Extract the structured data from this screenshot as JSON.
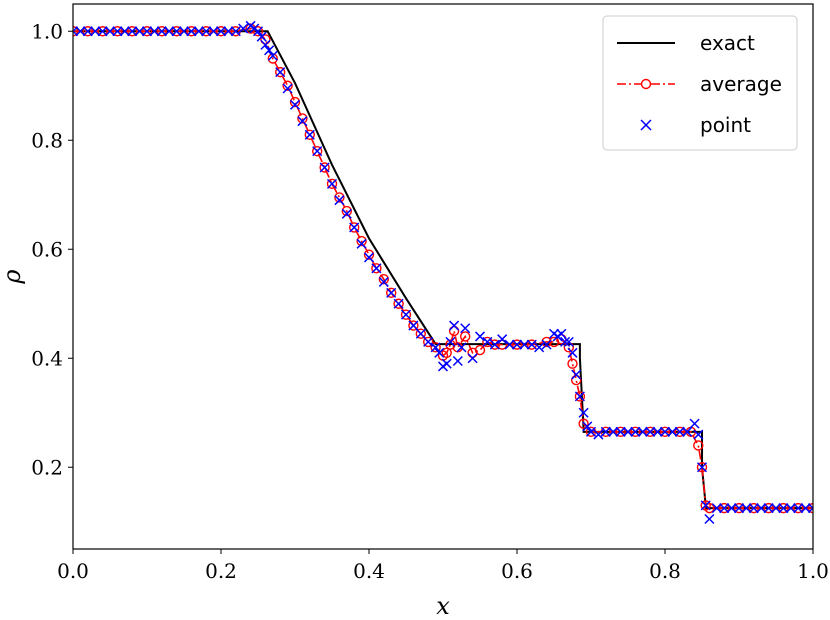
{
  "chart_data": {
    "type": "line",
    "xlabel": "x",
    "ylabel": "ρ",
    "xlim": [
      0.0,
      1.0
    ],
    "ylim": [
      0.05,
      1.05
    ],
    "x_ticks": [
      "0.0",
      "0.2",
      "0.4",
      "0.6",
      "0.8",
      "1.0"
    ],
    "y_ticks": [
      "0.2",
      "0.4",
      "0.6",
      "0.8",
      "1.0"
    ],
    "x_tick_values": [
      0.0,
      0.2,
      0.4,
      0.6,
      0.8,
      1.0
    ],
    "y_tick_values": [
      0.2,
      0.4,
      0.6,
      0.8,
      1.0
    ],
    "grid": false,
    "legend_position": "top-right",
    "series": [
      {
        "name": "exact",
        "style": "solid-line",
        "color": "#000000",
        "x": [
          0.0,
          0.263,
          0.3,
          0.35,
          0.4,
          0.45,
          0.49,
          0.685,
          0.685,
          0.69,
          0.69,
          0.85,
          0.85,
          0.855,
          0.855,
          1.0
        ],
        "y": [
          1.0,
          1.0,
          0.905,
          0.755,
          0.62,
          0.51,
          0.426,
          0.426,
          0.4,
          0.27,
          0.265,
          0.265,
          0.2,
          0.13,
          0.125,
          0.125
        ]
      },
      {
        "name": "average",
        "style": "dashdot-circle",
        "color": "#ff0000",
        "x": [
          0.0,
          0.02,
          0.04,
          0.06,
          0.08,
          0.1,
          0.12,
          0.14,
          0.16,
          0.18,
          0.2,
          0.22,
          0.24,
          0.25,
          0.26,
          0.27,
          0.28,
          0.29,
          0.3,
          0.31,
          0.32,
          0.33,
          0.34,
          0.35,
          0.36,
          0.37,
          0.38,
          0.39,
          0.4,
          0.41,
          0.42,
          0.43,
          0.44,
          0.45,
          0.46,
          0.47,
          0.48,
          0.49,
          0.5,
          0.505,
          0.51,
          0.515,
          0.52,
          0.53,
          0.54,
          0.55,
          0.56,
          0.57,
          0.58,
          0.6,
          0.62,
          0.64,
          0.65,
          0.66,
          0.67,
          0.675,
          0.68,
          0.685,
          0.69,
          0.7,
          0.72,
          0.74,
          0.76,
          0.78,
          0.8,
          0.82,
          0.835,
          0.845,
          0.85,
          0.855,
          0.86,
          0.88,
          0.9,
          0.92,
          0.94,
          0.96,
          0.98,
          1.0
        ],
        "y": [
          1.0,
          1.0,
          1.0,
          1.0,
          1.0,
          1.0,
          1.0,
          1.0,
          1.0,
          1.0,
          1.0,
          1.0,
          1.005,
          1.0,
          0.985,
          0.95,
          0.925,
          0.9,
          0.87,
          0.84,
          0.81,
          0.78,
          0.75,
          0.72,
          0.695,
          0.67,
          0.64,
          0.615,
          0.59,
          0.565,
          0.545,
          0.52,
          0.5,
          0.48,
          0.46,
          0.445,
          0.43,
          0.42,
          0.405,
          0.41,
          0.425,
          0.45,
          0.42,
          0.44,
          0.41,
          0.415,
          0.43,
          0.425,
          0.425,
          0.425,
          0.425,
          0.43,
          0.43,
          0.435,
          0.42,
          0.39,
          0.36,
          0.33,
          0.28,
          0.265,
          0.265,
          0.265,
          0.265,
          0.265,
          0.265,
          0.265,
          0.265,
          0.24,
          0.2,
          0.13,
          0.125,
          0.125,
          0.125,
          0.125,
          0.125,
          0.125,
          0.125,
          0.125
        ]
      },
      {
        "name": "point",
        "style": "x-marker",
        "color": "#0000ff",
        "x": [
          0.0,
          0.01,
          0.02,
          0.03,
          0.04,
          0.05,
          0.06,
          0.07,
          0.08,
          0.09,
          0.1,
          0.11,
          0.12,
          0.13,
          0.14,
          0.15,
          0.16,
          0.17,
          0.18,
          0.19,
          0.2,
          0.21,
          0.22,
          0.23,
          0.24,
          0.245,
          0.25,
          0.255,
          0.26,
          0.265,
          0.27,
          0.28,
          0.29,
          0.3,
          0.31,
          0.32,
          0.33,
          0.34,
          0.35,
          0.36,
          0.37,
          0.38,
          0.39,
          0.4,
          0.41,
          0.42,
          0.43,
          0.44,
          0.45,
          0.46,
          0.47,
          0.48,
          0.49,
          0.495,
          0.5,
          0.505,
          0.51,
          0.515,
          0.52,
          0.525,
          0.53,
          0.54,
          0.55,
          0.56,
          0.57,
          0.58,
          0.59,
          0.6,
          0.61,
          0.62,
          0.63,
          0.64,
          0.65,
          0.655,
          0.66,
          0.665,
          0.67,
          0.675,
          0.68,
          0.685,
          0.69,
          0.695,
          0.7,
          0.71,
          0.72,
          0.73,
          0.74,
          0.75,
          0.76,
          0.77,
          0.78,
          0.79,
          0.8,
          0.81,
          0.82,
          0.83,
          0.84,
          0.845,
          0.85,
          0.855,
          0.86,
          0.87,
          0.88,
          0.89,
          0.9,
          0.91,
          0.92,
          0.93,
          0.94,
          0.95,
          0.96,
          0.97,
          0.98,
          0.99,
          1.0
        ],
        "y": [
          1.0,
          1.0,
          1.0,
          1.0,
          1.0,
          1.0,
          1.0,
          1.0,
          1.0,
          1.0,
          1.0,
          1.0,
          1.0,
          1.0,
          1.0,
          1.0,
          1.0,
          1.0,
          1.0,
          1.0,
          1.0,
          1.0,
          1.0,
          1.005,
          1.01,
          1.005,
          1.0,
          0.99,
          0.975,
          0.965,
          0.955,
          0.925,
          0.895,
          0.865,
          0.835,
          0.81,
          0.78,
          0.75,
          0.72,
          0.69,
          0.665,
          0.64,
          0.61,
          0.585,
          0.565,
          0.54,
          0.52,
          0.5,
          0.48,
          0.46,
          0.445,
          0.43,
          0.42,
          0.41,
          0.385,
          0.39,
          0.43,
          0.46,
          0.395,
          0.42,
          0.455,
          0.4,
          0.44,
          0.43,
          0.425,
          0.435,
          0.425,
          0.425,
          0.425,
          0.425,
          0.42,
          0.425,
          0.445,
          0.44,
          0.445,
          0.43,
          0.43,
          0.41,
          0.37,
          0.33,
          0.3,
          0.275,
          0.265,
          0.26,
          0.265,
          0.265,
          0.265,
          0.265,
          0.265,
          0.265,
          0.265,
          0.265,
          0.265,
          0.265,
          0.265,
          0.265,
          0.28,
          0.26,
          0.2,
          0.13,
          0.105,
          0.125,
          0.125,
          0.125,
          0.125,
          0.125,
          0.125,
          0.125,
          0.125,
          0.125,
          0.125,
          0.125,
          0.125,
          0.125,
          0.125
        ]
      }
    ]
  }
}
